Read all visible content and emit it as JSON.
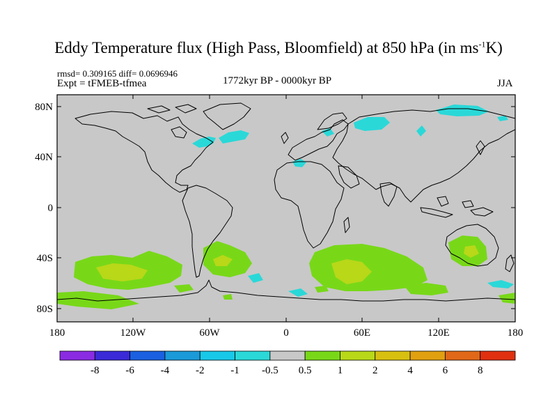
{
  "title": {
    "main": "Eddy Temperature flux (High Pass, Bloomfield) at 850 hPa (in ms",
    "sup": "-1",
    "unit_tail": "K)"
  },
  "stats": "rmsd= 0.309165 diff= 0.0696946",
  "experiment": "Expt = tFMEB-tfmea",
  "period": "1772kyr BP - 0000kyr BP",
  "season": "JJA",
  "axes": {
    "y_ticks": [
      "80N",
      "40N",
      "0",
      "40S",
      "80S"
    ],
    "x_ticks": [
      "180",
      "120W",
      "60W",
      "0",
      "60E",
      "120E",
      "180"
    ]
  },
  "colorbar": {
    "colors": [
      "#8a2be2",
      "#3a2ad8",
      "#1a60e0",
      "#1a9ad8",
      "#18c8e8",
      "#2ad8d8",
      "#c8c8c8",
      "#78d818",
      "#b8d818",
      "#d8c010",
      "#e0a010",
      "#e06818",
      "#e03010"
    ],
    "labels": [
      "-8",
      "-6",
      "-4",
      "-2",
      "-1",
      "-0.5",
      "0.5",
      "1",
      "2",
      "4",
      "6",
      "8"
    ]
  },
  "colors": {
    "background": "#c8c8c8",
    "cyan": "#2ad8d8",
    "green": "#78d818",
    "yellow_green": "#b8d818",
    "coast": "#000000"
  }
}
